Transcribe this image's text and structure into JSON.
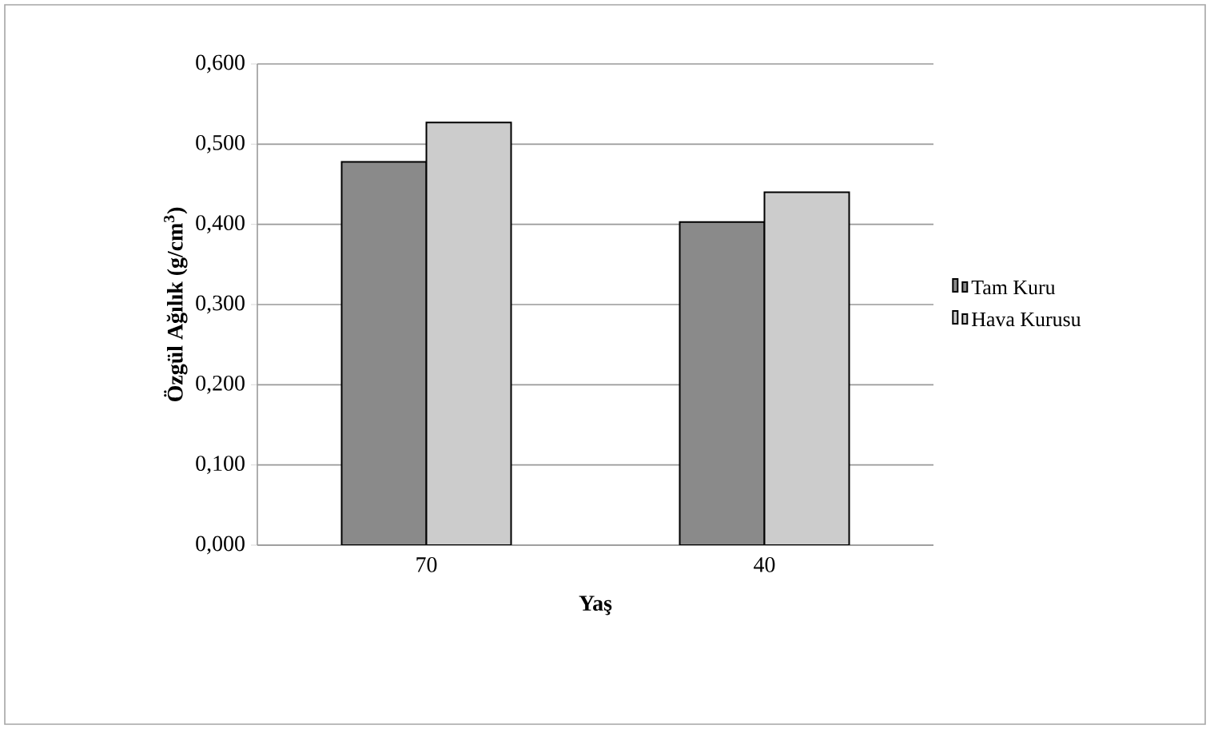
{
  "chart_data": {
    "type": "bar",
    "xlabel": "Yaş",
    "ylabel": "Özgül Ağılık (g/cm$^{3}$)",
    "categories": [
      "70",
      "40"
    ],
    "series": [
      {
        "name": "Tam Kuru",
        "color": "#8a8a8a",
        "values": [
          0.478,
          0.403
        ]
      },
      {
        "name": "Hava Kurusu",
        "color": "#cccccc",
        "values": [
          0.527,
          0.44
        ]
      }
    ],
    "ylim": [
      0,
      0.6
    ],
    "yticks": [
      {
        "value": 0,
        "label": "0,000"
      },
      {
        "value": 0.1,
        "label": "0,100"
      },
      {
        "value": 0.2,
        "label": "0,200"
      },
      {
        "value": 0.3,
        "label": "0,300"
      },
      {
        "value": 0.4,
        "label": "0,400"
      },
      {
        "value": 0.5,
        "label": "0,500"
      },
      {
        "value": 0.6,
        "label": "0,600"
      }
    ],
    "grid": "y",
    "legend": "right"
  }
}
